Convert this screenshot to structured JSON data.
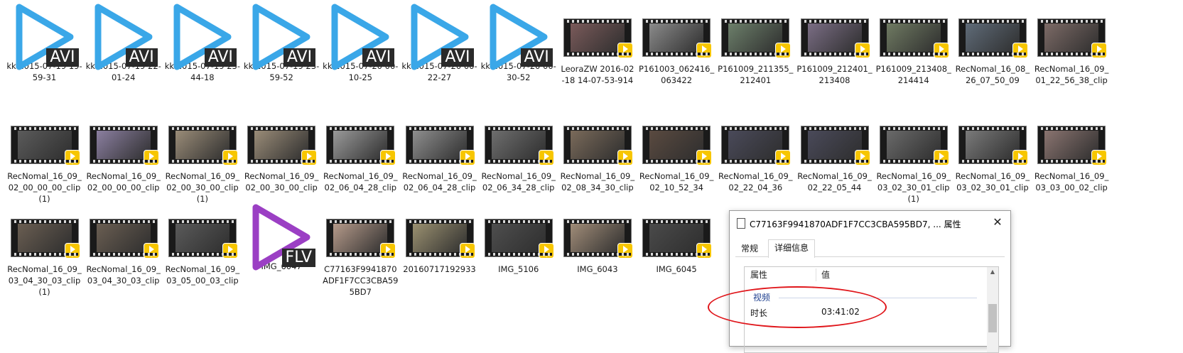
{
  "files": [
    {
      "label": "kk 2015-07-19 19-59-31",
      "kind": "avi",
      "icon": "avi-file-icon"
    },
    {
      "label": "kk 2015-07-19 22-01-24",
      "kind": "avi",
      "icon": "avi-file-icon"
    },
    {
      "label": "kk 2015-07-19 23-44-18",
      "kind": "avi",
      "icon": "avi-file-icon"
    },
    {
      "label": "kk 2015-07-19 23-59-52",
      "kind": "avi",
      "icon": "avi-file-icon"
    },
    {
      "label": "kk 2015-07-20 00-10-25",
      "kind": "avi",
      "icon": "avi-file-icon"
    },
    {
      "label": "kk 2015-07-20 00-22-27",
      "kind": "avi",
      "icon": "avi-file-icon"
    },
    {
      "label": "kk 2015-07-20 00-30-52",
      "kind": "avi",
      "icon": "avi-file-icon"
    },
    {
      "label": "LeoraZW 2016-02-18 14-07-53-914",
      "kind": "video",
      "tone": "#7a5a5a"
    },
    {
      "label": "P161003_062416_063422",
      "kind": "video",
      "tone": "#8a8a8a"
    },
    {
      "label": "P161009_211355_212401",
      "kind": "video",
      "tone": "#6c7f6a"
    },
    {
      "label": "P161009_212401_213408",
      "kind": "video",
      "tone": "#7a6d84"
    },
    {
      "label": "P161009_213408_214414",
      "kind": "video",
      "tone": "#6f7a62"
    },
    {
      "label": "RecNomal_16_08_26_07_50_09",
      "kind": "video",
      "tone": "#5f6b78"
    },
    {
      "label": "RecNomal_16_09_01_22_56_38_clip",
      "kind": "video",
      "tone": "#7c6a66"
    },
    {
      "label": "RecNomal_16_09_02_00_00_00_clip(1)",
      "kind": "video",
      "tone": "#5b5b5b"
    },
    {
      "label": "RecNomal_16_09_02_00_00_00_clip",
      "kind": "video",
      "tone": "#8b7fa0"
    },
    {
      "label": "RecNomal_16_09_02_00_30_00_clip(1)",
      "kind": "video",
      "tone": "#9a8c78"
    },
    {
      "label": "RecNomal_16_09_02_00_30_00_clip",
      "kind": "video",
      "tone": "#9a8c78"
    },
    {
      "label": "RecNomal_16_09_02_06_04_28_clip",
      "kind": "video",
      "tone": "#9a9a9a"
    },
    {
      "label": "RecNomal_16_09_02_06_04_28_clip",
      "kind": "video",
      "tone": "#8e8e8e"
    },
    {
      "label": "RecNomal_16_09_02_06_34_28_clip",
      "kind": "video",
      "tone": "#6e6e6e"
    },
    {
      "label": "RecNomal_16_09_02_08_34_30_clip",
      "kind": "video",
      "tone": "#7a6a5a"
    },
    {
      "label": "RecNomal_16_09_02_10_52_34",
      "kind": "video",
      "tone": "#5a4a40"
    },
    {
      "label": "RecNomal_16_09_02_22_04_36",
      "kind": "video",
      "tone": "#4a4a5a"
    },
    {
      "label": "RecNomal_16_09_02_22_05_44",
      "kind": "video",
      "tone": "#4a4a5a"
    },
    {
      "label": "RecNomal_16_09_03_02_30_01_clip(1)",
      "kind": "video",
      "tone": "#6a6a6a"
    },
    {
      "label": "RecNomal_16_09_03_02_30_01_clip",
      "kind": "video",
      "tone": "#7a7a7a"
    },
    {
      "label": "RecNomal_16_09_03_03_00_02_clip",
      "kind": "video",
      "tone": "#8a7470"
    },
    {
      "label": "RecNomal_16_09_03_04_30_03_clip(1)",
      "kind": "video",
      "tone": "#6a5e52"
    },
    {
      "label": "RecNomal_16_09_03_04_30_03_clip",
      "kind": "video",
      "tone": "#6a5e52"
    },
    {
      "label": "RecNomal_16_09_03_05_00_03_clip",
      "kind": "video",
      "tone": "#5a5a5a"
    },
    {
      "label": "IMG_6047",
      "kind": "flv",
      "icon": "flv-file-icon"
    },
    {
      "label": "C77163F9941870ADF1F7CC3CBA595BD7",
      "kind": "video",
      "tone": "#b59a8a"
    },
    {
      "label": "20160717192933",
      "kind": "video",
      "tone": "#9a9070"
    },
    {
      "label": "IMG_5106",
      "kind": "video",
      "tone": "#4e4e4e"
    },
    {
      "label": "IMG_6043",
      "kind": "video",
      "tone": "#a08c78"
    },
    {
      "label": "IMG_6045",
      "kind": "video",
      "tone": "#4a4a4a"
    }
  ],
  "badges": {
    "avi": "AVI",
    "flv": "FLV",
    "player": "Player"
  },
  "colors": {
    "avi_play": "#3aa7e8",
    "flv_play": "#9b3fc4",
    "player_badge": "#f7c600",
    "highlight_ellipse": "#e0161b"
  },
  "dialog": {
    "title": "C77163F9941870ADF1F7CC3CBA595BD7, ... 属性",
    "close": "✕",
    "tabs": [
      {
        "label": "常规",
        "active": false
      },
      {
        "label": "详细信息",
        "active": true
      }
    ],
    "columns": {
      "property": "属性",
      "value": "值"
    },
    "group": "视频",
    "rows": [
      {
        "name": "时长",
        "value": "03:41:02"
      }
    ]
  }
}
